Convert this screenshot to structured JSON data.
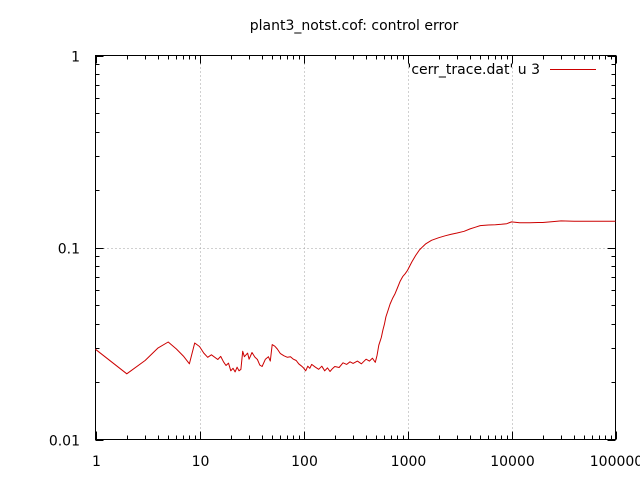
{
  "chart_data": {
    "type": "line",
    "title": "plant3_notst.cof: control error",
    "xlabel": "",
    "ylabel": "",
    "x_scale": "log",
    "y_scale": "log",
    "xlim": [
      1,
      100000
    ],
    "ylim": [
      0.01,
      1
    ],
    "grid": true,
    "legend_position": "top-right",
    "x_ticks": [
      {
        "value": 1,
        "label": "1"
      },
      {
        "value": 10,
        "label": "10"
      },
      {
        "value": 100,
        "label": "100"
      },
      {
        "value": 1000,
        "label": "1000"
      },
      {
        "value": 10000,
        "label": "10000"
      },
      {
        "value": 100000,
        "label": "100000"
      }
    ],
    "y_ticks": [
      {
        "value": 0.01,
        "label": "0.01"
      },
      {
        "value": 0.1,
        "label": "0.1"
      },
      {
        "value": 1,
        "label": "1"
      }
    ],
    "series": [
      {
        "name": "'cerr_trace.dat' u 3",
        "color": "#cc0000",
        "points": [
          [
            1,
            0.0295
          ],
          [
            2,
            0.022
          ],
          [
            3,
            0.0258
          ],
          [
            4,
            0.03
          ],
          [
            5,
            0.0322
          ],
          [
            6,
            0.0296
          ],
          [
            7,
            0.0272
          ],
          [
            8,
            0.0248
          ],
          [
            9,
            0.0318
          ],
          [
            10,
            0.0305
          ],
          [
            11,
            0.0282
          ],
          [
            12,
            0.0268
          ],
          [
            13,
            0.0276
          ],
          [
            15,
            0.0261
          ],
          [
            16,
            0.0271
          ],
          [
            17,
            0.0254
          ],
          [
            18,
            0.0243
          ],
          [
            19,
            0.025
          ],
          [
            20,
            0.0228
          ],
          [
            21,
            0.0235
          ],
          [
            22,
            0.0225
          ],
          [
            23,
            0.0238
          ],
          [
            24,
            0.0228
          ],
          [
            25,
            0.0232
          ],
          [
            26,
            0.0288
          ],
          [
            27,
            0.027
          ],
          [
            29,
            0.0282
          ],
          [
            30,
            0.0262
          ],
          [
            32,
            0.0284
          ],
          [
            34,
            0.0269
          ],
          [
            36,
            0.0261
          ],
          [
            38,
            0.0244
          ],
          [
            40,
            0.024
          ],
          [
            43,
            0.0262
          ],
          [
            46,
            0.027
          ],
          [
            48,
            0.0256
          ],
          [
            50,
            0.0312
          ],
          [
            53,
            0.0306
          ],
          [
            56,
            0.0296
          ],
          [
            60,
            0.028
          ],
          [
            65,
            0.0273
          ],
          [
            70,
            0.0268
          ],
          [
            75,
            0.027
          ],
          [
            80,
            0.0262
          ],
          [
            85,
            0.0258
          ],
          [
            90,
            0.0248
          ],
          [
            95,
            0.0242
          ],
          [
            100,
            0.0236
          ],
          [
            105,
            0.0228
          ],
          [
            110,
            0.0241
          ],
          [
            115,
            0.0235
          ],
          [
            120,
            0.0246
          ],
          [
            130,
            0.0238
          ],
          [
            140,
            0.0232
          ],
          [
            150,
            0.0241
          ],
          [
            160,
            0.0228
          ],
          [
            170,
            0.0236
          ],
          [
            180,
            0.0226
          ],
          [
            190,
            0.0234
          ],
          [
            200,
            0.024
          ],
          [
            220,
            0.0237
          ],
          [
            240,
            0.0251
          ],
          [
            260,
            0.0246
          ],
          [
            280,
            0.0254
          ],
          [
            300,
            0.0249
          ],
          [
            330,
            0.0256
          ],
          [
            360,
            0.0248
          ],
          [
            400,
            0.0262
          ],
          [
            430,
            0.0256
          ],
          [
            460,
            0.0265
          ],
          [
            490,
            0.0252
          ],
          [
            510,
            0.0275
          ],
          [
            530,
            0.031
          ],
          [
            560,
            0.034
          ],
          [
            580,
            0.0372
          ],
          [
            600,
            0.0398
          ],
          [
            620,
            0.0435
          ],
          [
            650,
            0.047
          ],
          [
            680,
            0.0508
          ],
          [
            720,
            0.0545
          ],
          [
            760,
            0.0575
          ],
          [
            800,
            0.0615
          ],
          [
            850,
            0.0668
          ],
          [
            900,
            0.0705
          ],
          [
            950,
            0.073
          ],
          [
            1000,
            0.076
          ],
          [
            1100,
            0.084
          ],
          [
            1200,
            0.091
          ],
          [
            1300,
            0.097
          ],
          [
            1400,
            0.101
          ],
          [
            1500,
            0.1045
          ],
          [
            1700,
            0.109
          ],
          [
            2000,
            0.1125
          ],
          [
            2300,
            0.115
          ],
          [
            2600,
            0.117
          ],
          [
            3000,
            0.119
          ],
          [
            3500,
            0.1215
          ],
          [
            4000,
            0.125
          ],
          [
            4500,
            0.1275
          ],
          [
            5000,
            0.13
          ],
          [
            6000,
            0.131
          ],
          [
            7000,
            0.1315
          ],
          [
            8000,
            0.132
          ],
          [
            9000,
            0.133
          ],
          [
            10000,
            0.136
          ],
          [
            12000,
            0.1345
          ],
          [
            15000,
            0.1345
          ],
          [
            18000,
            0.135
          ],
          [
            20000,
            0.135
          ],
          [
            25000,
            0.1365
          ],
          [
            30000,
            0.1375
          ],
          [
            40000,
            0.137
          ],
          [
            50000,
            0.137
          ],
          [
            70000,
            0.137
          ],
          [
            100000,
            0.137
          ]
        ]
      }
    ]
  }
}
